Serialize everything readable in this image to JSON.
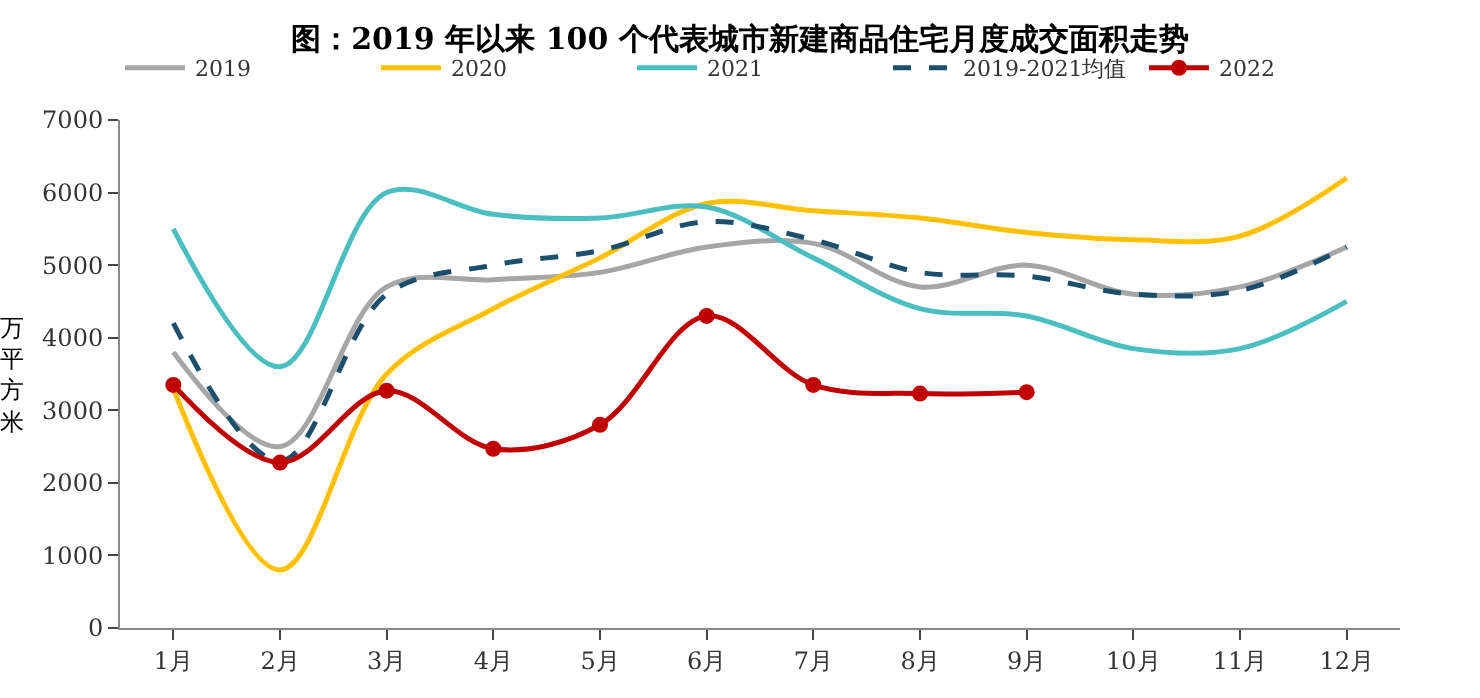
{
  "chart_data": {
    "type": "line",
    "title": "图：2019 年以来 100 个代表城市新建商品住宅月度成交面积走势",
    "ylabel": "万平方米",
    "categories": [
      "1月",
      "2月",
      "3月",
      "4月",
      "5月",
      "6月",
      "7月",
      "8月",
      "9月",
      "10月",
      "11月",
      "12月"
    ],
    "series": [
      {
        "name": "2019",
        "color": "#a6a6a6",
        "marker": "none",
        "line_style": "solid",
        "values": [
          3800,
          2500,
          4700,
          4800,
          4900,
          5250,
          5300,
          4700,
          5000,
          4600,
          4700,
          5250
        ]
      },
      {
        "name": "2020",
        "color": "#ffc000",
        "marker": "none",
        "line_style": "solid",
        "values": [
          3300,
          800,
          3500,
          4400,
          5100,
          5850,
          5750,
          5650,
          5450,
          5350,
          5400,
          6200
        ]
      },
      {
        "name": "2021",
        "color": "#4bbfbf",
        "marker": "none",
        "line_style": "solid",
        "values": [
          5500,
          3600,
          6000,
          5700,
          5650,
          5800,
          5100,
          4400,
          4300,
          3850,
          3850,
          4500
        ]
      },
      {
        "name": "2019-2021均值",
        "color": "#1b4f6b",
        "marker": "none",
        "line_style": "dashed",
        "values": [
          4200,
          2300,
          4600,
          5000,
          5200,
          5600,
          5350,
          4900,
          4850,
          4600,
          4650,
          5250
        ]
      },
      {
        "name": "2022",
        "color": "#c00000",
        "marker": "circle",
        "line_style": "solid",
        "values": [
          3350,
          2280,
          3270,
          2470,
          2800,
          4300,
          3350,
          3230,
          3250,
          null,
          null,
          null
        ]
      }
    ],
    "ylim": [
      0,
      7000
    ],
    "yticks": [
      0,
      1000,
      2000,
      3000,
      4000,
      5000,
      6000,
      7000
    ],
    "legend": "top"
  }
}
